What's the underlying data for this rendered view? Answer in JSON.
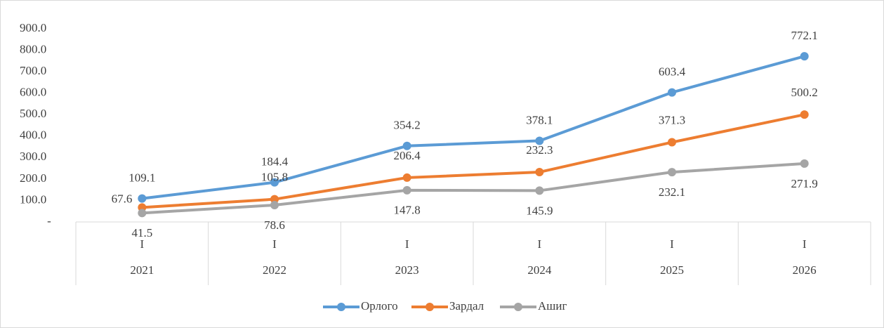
{
  "chart_data": {
    "type": "line",
    "categories": [
      "2021",
      "2022",
      "2023",
      "2024",
      "2025",
      "2026"
    ],
    "quarters": [
      "I",
      "I",
      "I",
      "I",
      "I",
      "I"
    ],
    "series": [
      {
        "name": "Орлого",
        "color": "#5b9bd5",
        "values": [
          109.1,
          184.4,
          354.2,
          378.1,
          603.4,
          772.1
        ]
      },
      {
        "name": "Зардал",
        "color": "#ed7d31",
        "values": [
          67.6,
          105.8,
          206.4,
          232.3,
          371.3,
          500.2
        ]
      },
      {
        "name": "Ашиг",
        "color": "#a5a5a5",
        "values": [
          41.5,
          78.6,
          147.8,
          145.9,
          232.1,
          271.9
        ]
      }
    ],
    "ylim": [
      0,
      900
    ],
    "yticks": [
      {
        "value": 0,
        "label": "-"
      },
      {
        "value": 100,
        "label": "100.0"
      },
      {
        "value": 200,
        "label": "200.0"
      },
      {
        "value": 300,
        "label": "300.0"
      },
      {
        "value": 400,
        "label": "400.0"
      },
      {
        "value": 500,
        "label": "500.0"
      },
      {
        "value": 600,
        "label": "600.0"
      },
      {
        "value": 700,
        "label": "700.0"
      },
      {
        "value": 800,
        "label": "800.0"
      },
      {
        "value": 900,
        "label": "900.0"
      }
    ],
    "grid": false,
    "legend": "bottom"
  }
}
